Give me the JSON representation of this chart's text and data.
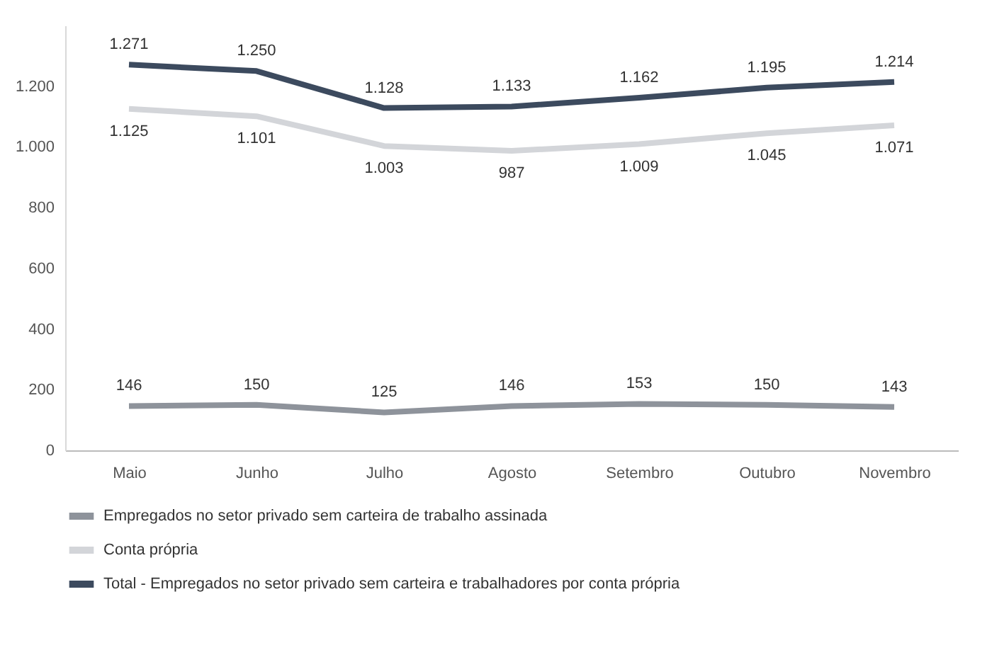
{
  "chart_data": {
    "type": "line",
    "categories": [
      "Maio",
      "Junho",
      "Julho",
      "Agosto",
      "Setembro",
      "Outubro",
      "Novembro"
    ],
    "series": [
      {
        "name": "Empregados no setor privado sem carteira de trabalho assinada",
        "color": "#8e939b",
        "values": [
          146,
          150,
          125,
          146,
          153,
          150,
          143
        ],
        "value_labels": [
          "146",
          "150",
          "125",
          "146",
          "153",
          "150",
          "143"
        ]
      },
      {
        "name": "Conta própria",
        "color": "#d3d5d9",
        "values": [
          1125,
          1101,
          1003,
          987,
          1009,
          1045,
          1071
        ],
        "value_labels": [
          "1.125",
          "1.101",
          "1.003",
          "987",
          "1.009",
          "1.045",
          "1.071"
        ]
      },
      {
        "name": "Total - Empregados no setor privado sem carteira e trabalhadores por conta própria",
        "color": "#3c4a5e",
        "values": [
          1271,
          1250,
          1128,
          1133,
          1162,
          1195,
          1214
        ],
        "value_labels": [
          "1.271",
          "1.250",
          "1.128",
          "1.133",
          "1.162",
          "1.195",
          "1.214"
        ]
      }
    ],
    "ylim": [
      0,
      1400
    ],
    "yticks": [
      0,
      200,
      400,
      600,
      800,
      {
        "value": 1000,
        "label": "1.000"
      },
      {
        "value": 1200,
        "label": "1.200"
      }
    ],
    "grid": false,
    "legend": "bottom",
    "marker": "none",
    "line_style": "solid"
  }
}
